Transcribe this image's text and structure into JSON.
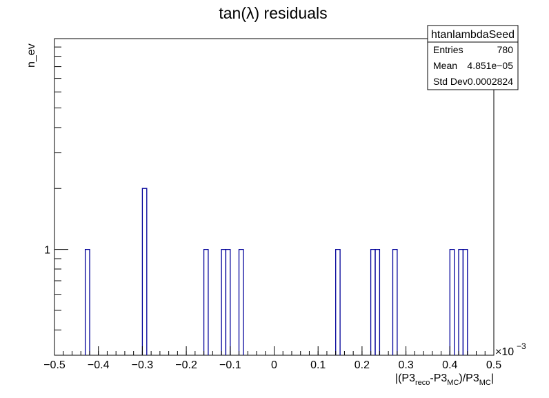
{
  "chart_data": {
    "type": "histogram",
    "title": "tan(λ) residuals",
    "ylabel": "n_ev",
    "xlabel": {
      "parts": [
        {
          "text": "|(P3",
          "script": "normal"
        },
        {
          "text": "reco",
          "script": "sub"
        },
        {
          "text": "-P3",
          "script": "normal"
        },
        {
          "text": "MC",
          "script": "sub"
        },
        {
          "text": ")/P3",
          "script": "normal"
        },
        {
          "text": "MC",
          "script": "sub"
        },
        {
          "text": "|",
          "script": "normal"
        }
      ]
    },
    "x_multiplier": "×10",
    "x_multiplier_exp": "−3",
    "xlim": [
      -0.5,
      0.5
    ],
    "ylog": true,
    "ylim": [
      0.3,
      11
    ],
    "x_ticks": [
      {
        "value": -0.5,
        "label": "−0.5"
      },
      {
        "value": -0.4,
        "label": "−0.4"
      },
      {
        "value": -0.3,
        "label": "−0.3"
      },
      {
        "value": -0.2,
        "label": "−0.2"
      },
      {
        "value": -0.1,
        "label": "−0.1"
      },
      {
        "value": 0,
        "label": "0"
      },
      {
        "value": 0.1,
        "label": "0.1"
      },
      {
        "value": 0.2,
        "label": "0.2"
      },
      {
        "value": 0.3,
        "label": "0.3"
      },
      {
        "value": 0.4,
        "label": "0.4"
      },
      {
        "value": 0.5,
        "label": "0.5"
      }
    ],
    "y_ticks": [
      {
        "value": 1,
        "label": "1"
      }
    ],
    "bin_width": 0.01,
    "bars": [
      {
        "x": -0.425,
        "value": 1
      },
      {
        "x": -0.295,
        "value": 2
      },
      {
        "x": -0.155,
        "value": 1
      },
      {
        "x": -0.115,
        "value": 1
      },
      {
        "x": -0.105,
        "value": 1
      },
      {
        "x": -0.075,
        "value": 1
      },
      {
        "x": 0.145,
        "value": 1
      },
      {
        "x": 0.225,
        "value": 1
      },
      {
        "x": 0.235,
        "value": 1
      },
      {
        "x": 0.275,
        "value": 1
      },
      {
        "x": 0.405,
        "value": 1
      },
      {
        "x": 0.425,
        "value": 1
      },
      {
        "x": 0.435,
        "value": 1
      }
    ],
    "line_color": "#000099"
  },
  "stats": {
    "name": "htanlambdaSeed",
    "rows": [
      {
        "label": "Entries",
        "value": "780"
      },
      {
        "label": "Mean",
        "value": "4.851e−05"
      },
      {
        "label": "Std Dev",
        "value": "0.0002824"
      }
    ]
  }
}
